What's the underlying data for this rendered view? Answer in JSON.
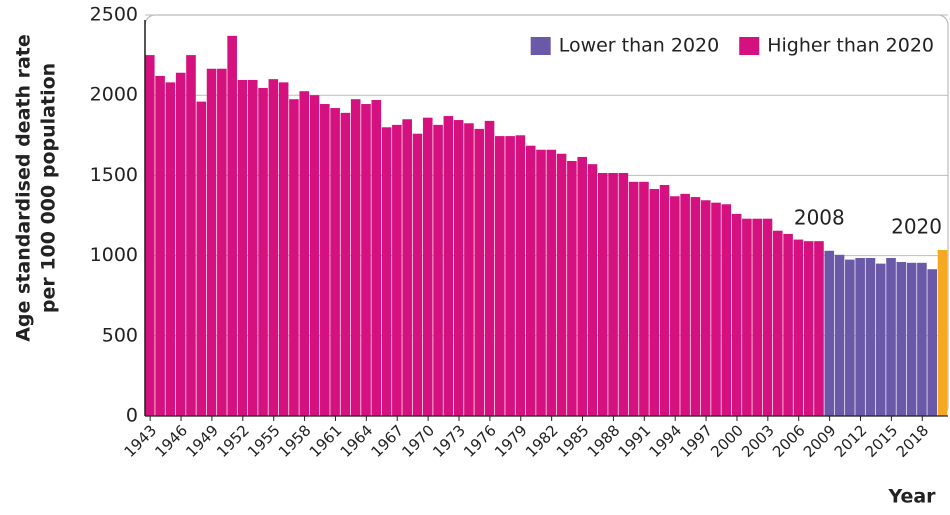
{
  "chart_data": {
    "type": "bar",
    "ylabel": [
      "Age standardised death rate",
      "per 100 000 population"
    ],
    "xlabel": "Year",
    "categories": [
      "1943",
      null,
      null,
      "1946",
      null,
      null,
      "1949",
      null,
      null,
      "1952",
      null,
      null,
      "1955",
      null,
      null,
      "1958",
      null,
      null,
      "1961",
      null,
      null,
      "1964",
      null,
      null,
      "1967",
      null,
      null,
      "1970",
      null,
      null,
      "1973",
      null,
      null,
      "1976",
      null,
      null,
      "1979",
      null,
      null,
      "1982",
      null,
      null,
      "1985",
      null,
      null,
      "1988",
      null,
      null,
      "1991",
      null,
      null,
      "1994",
      null,
      null,
      "1997",
      null,
      null,
      "2000",
      null,
      null,
      "2003",
      null,
      null,
      "2006",
      null,
      null,
      "2009",
      null,
      null,
      "2012",
      null,
      null,
      "2015",
      null,
      null,
      "2018",
      null,
      null
    ],
    "series": [
      {
        "name": "Higher than 2020",
        "color": "#d4117f",
        "end_label": "2008",
        "values": [
          2250,
          2120,
          2080,
          2140,
          2250,
          1960,
          2165,
          2165,
          2370,
          2095,
          2095,
          2045,
          2100,
          2080,
          1975,
          2025,
          2000,
          1945,
          1920,
          1890,
          1975,
          1945,
          1970,
          1800,
          1815,
          1850,
          1760,
          1860,
          1815,
          1870,
          1845,
          1825,
          1790,
          1840,
          1745,
          1745,
          1750,
          1685,
          1660,
          1660,
          1635,
          1590,
          1615,
          1570,
          1515,
          1515,
          1515,
          1460,
          1460,
          1415,
          1440,
          1370,
          1385,
          1365,
          1345,
          1330,
          1320,
          1260,
          1230,
          1230,
          1230,
          1155,
          1135,
          1100,
          1090,
          1090,
          null,
          null,
          null,
          null,
          null,
          null,
          null,
          null,
          null,
          null,
          null,
          null
        ]
      },
      {
        "name": "Lower than 2020",
        "color": "#6a58a8",
        "values": [
          null,
          null,
          null,
          null,
          null,
          null,
          null,
          null,
          null,
          null,
          null,
          null,
          null,
          null,
          null,
          null,
          null,
          null,
          null,
          null,
          null,
          null,
          null,
          null,
          null,
          null,
          null,
          null,
          null,
          null,
          null,
          null,
          null,
          null,
          null,
          null,
          null,
          null,
          null,
          null,
          null,
          null,
          null,
          null,
          null,
          null,
          null,
          null,
          null,
          null,
          null,
          null,
          null,
          null,
          null,
          null,
          null,
          null,
          null,
          null,
          null,
          null,
          null,
          null,
          null,
          null,
          1030,
          1005,
          975,
          985,
          985,
          950,
          985,
          960,
          955,
          955,
          915,
          null
        ]
      },
      {
        "color": "#f6a821",
        "end_label": "2020",
        "values": [
          null,
          null,
          null,
          null,
          null,
          null,
          null,
          null,
          null,
          null,
          null,
          null,
          null,
          null,
          null,
          null,
          null,
          null,
          null,
          null,
          null,
          null,
          null,
          null,
          null,
          null,
          null,
          null,
          null,
          null,
          null,
          null,
          null,
          null,
          null,
          null,
          null,
          null,
          null,
          null,
          null,
          null,
          null,
          null,
          null,
          null,
          null,
          null,
          null,
          null,
          null,
          null,
          null,
          null,
          null,
          null,
          null,
          null,
          null,
          null,
          null,
          null,
          null,
          null,
          null,
          null,
          null,
          null,
          null,
          null,
          null,
          null,
          null,
          null,
          null,
          null,
          null,
          1035
        ]
      }
    ],
    "ylim": [
      0,
      2500
    ],
    "yticks": [
      0,
      500,
      1000,
      1500,
      2000,
      2500
    ],
    "grid": true,
    "legend": "top-right"
  }
}
